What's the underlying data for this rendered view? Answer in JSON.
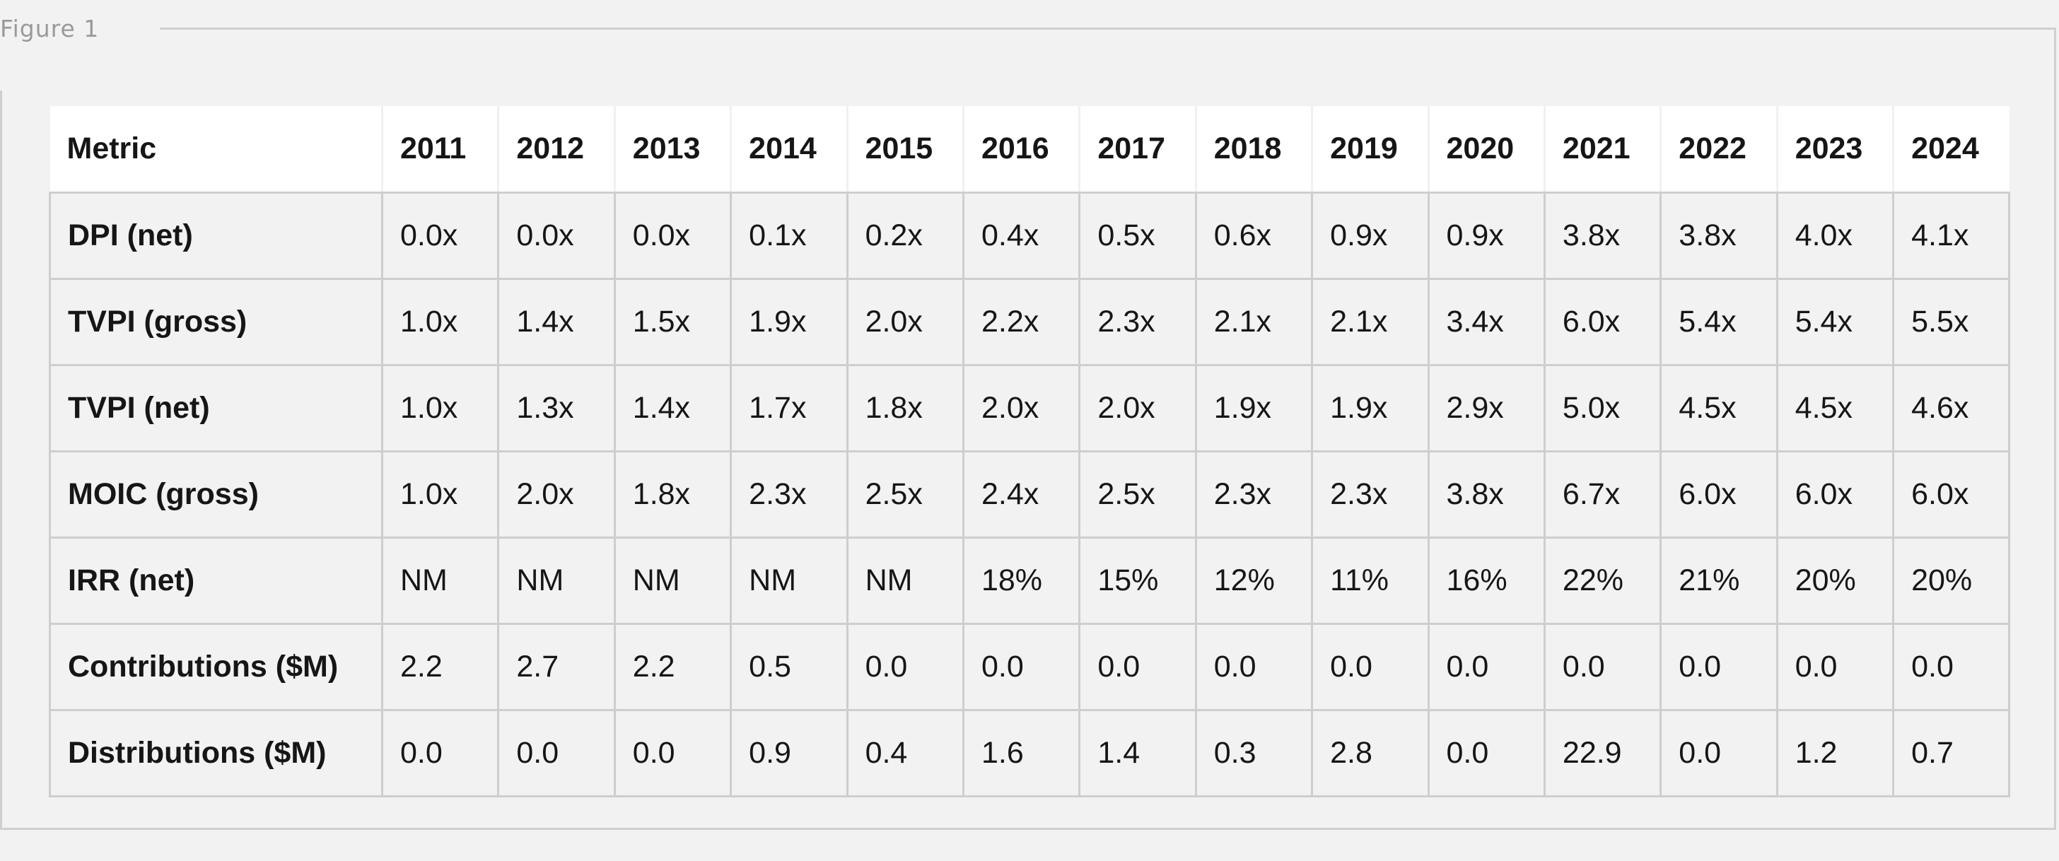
{
  "figure": {
    "label": "Figure 1"
  },
  "chart_data": {
    "type": "table",
    "columns": [
      "Metric",
      "2011",
      "2012",
      "2013",
      "2014",
      "2015",
      "2016",
      "2017",
      "2018",
      "2019",
      "2020",
      "2021",
      "2022",
      "2023",
      "2024"
    ],
    "rows": [
      {
        "metric": "DPI (net)",
        "values": [
          "0.0x",
          "0.0x",
          "0.0x",
          "0.1x",
          "0.2x",
          "0.4x",
          "0.5x",
          "0.6x",
          "0.9x",
          "0.9x",
          "3.8x",
          "3.8x",
          "4.0x",
          "4.1x"
        ]
      },
      {
        "metric": "TVPI (gross)",
        "values": [
          "1.0x",
          "1.4x",
          "1.5x",
          "1.9x",
          "2.0x",
          "2.2x",
          "2.3x",
          "2.1x",
          "2.1x",
          "3.4x",
          "6.0x",
          "5.4x",
          "5.4x",
          "5.5x"
        ]
      },
      {
        "metric": "TVPI (net)",
        "values": [
          "1.0x",
          "1.3x",
          "1.4x",
          "1.7x",
          "1.8x",
          "2.0x",
          "2.0x",
          "1.9x",
          "1.9x",
          "2.9x",
          "5.0x",
          "4.5x",
          "4.5x",
          "4.6x"
        ]
      },
      {
        "metric": "MOIC (gross)",
        "values": [
          "1.0x",
          "2.0x",
          "1.8x",
          "2.3x",
          "2.5x",
          "2.4x",
          "2.5x",
          "2.3x",
          "2.3x",
          "3.8x",
          "6.7x",
          "6.0x",
          "6.0x",
          "6.0x"
        ]
      },
      {
        "metric": "IRR (net)",
        "values": [
          "NM",
          "NM",
          "NM",
          "NM",
          "NM",
          "18%",
          "15%",
          "12%",
          "11%",
          "16%",
          "22%",
          "21%",
          "20%",
          "20%"
        ]
      },
      {
        "metric": "Contributions ($M)",
        "values": [
          "2.2",
          "2.7",
          "2.2",
          "0.5",
          "0.0",
          "0.0",
          "0.0",
          "0.0",
          "0.0",
          "0.0",
          "0.0",
          "0.0",
          "0.0",
          "0.0"
        ]
      },
      {
        "metric": "Distributions ($M)",
        "values": [
          "0.0",
          "0.0",
          "0.0",
          "0.9",
          "0.4",
          "1.6",
          "1.4",
          "0.3",
          "2.8",
          "0.0",
          "22.9",
          "0.0",
          "1.2",
          "0.7"
        ]
      }
    ]
  }
}
